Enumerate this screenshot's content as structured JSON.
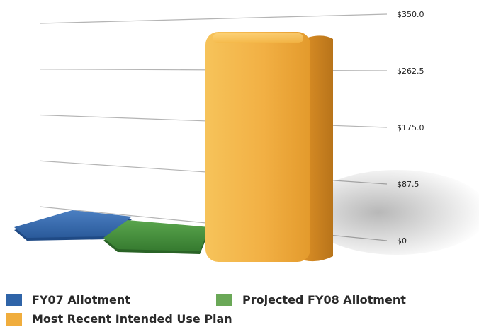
{
  "chart_data": {
    "type": "bar",
    "categories": [
      "FY07 Allotment",
      "Projected FY08 Allotment",
      "Most Recent Intended Use Plan"
    ],
    "values": [
      3,
      3,
      350
    ],
    "colors": [
      "#2f64a8",
      "#3f8f3a",
      "#f0ad3d"
    ],
    "ylim": [
      0,
      350
    ],
    "y_ticks": [
      "$0",
      "$87.5",
      "$175.0",
      "$262.5",
      "$350.0"
    ],
    "grid": true,
    "legend_position": "bottom",
    "style": "3d"
  },
  "legend": {
    "items": [
      {
        "label": "FY07 Allotment",
        "color": "#2f64a8"
      },
      {
        "label": "Projected FY08 Allotment",
        "color": "#6aa857"
      },
      {
        "label": "Most Recent Intended Use Plan",
        "color": "#f0ad3d"
      }
    ]
  }
}
